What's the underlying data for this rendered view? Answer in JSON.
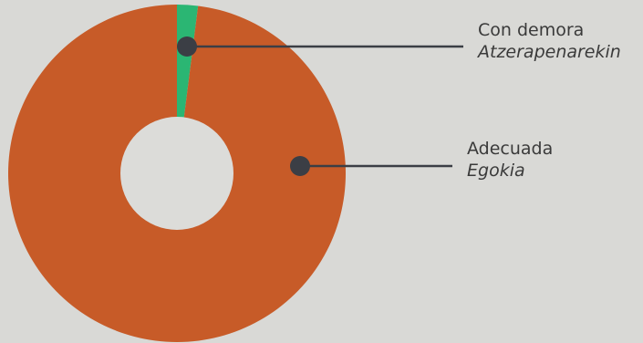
{
  "chart_data": {
    "type": "pie",
    "donut": true,
    "slices": [
      {
        "label": "Adecuada",
        "label_secondary": "Egokia",
        "value": 98,
        "color": "#c75b28"
      },
      {
        "label": "Con demora",
        "label_secondary": "Atzerapenarekin",
        "value": 2,
        "color": "#2bb673"
      }
    ],
    "center_color": "#dcdcd9",
    "leader_color": "#3b3e45"
  }
}
